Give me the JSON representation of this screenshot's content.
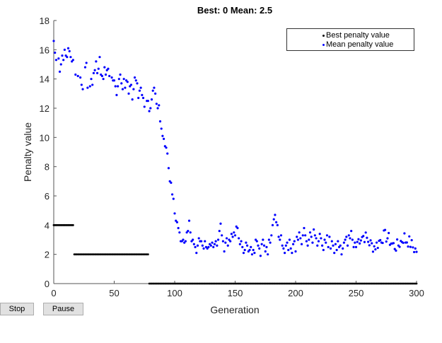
{
  "chart_data": {
    "type": "scatter",
    "title": "Best: 0 Mean: 2.5",
    "xlabel": "Generation",
    "ylabel": "Penalty value",
    "xlim": [
      0,
      300
    ],
    "ylim": [
      0,
      18
    ],
    "xticks": [
      0,
      50,
      100,
      150,
      200,
      250,
      300
    ],
    "yticks": [
      0,
      2,
      4,
      6,
      8,
      10,
      12,
      14,
      16,
      18
    ],
    "grid": false,
    "legend_position": "top-right",
    "series": [
      {
        "name": "Best penalty value",
        "color": "#000000",
        "segments": [
          {
            "from": 0,
            "to": 16,
            "value": 4
          },
          {
            "from": 17,
            "to": 78,
            "value": 2
          },
          {
            "from": 79,
            "to": 300,
            "value": 0
          }
        ]
      },
      {
        "name": "Mean penalty value",
        "color": "#0000ff",
        "keypoints": [
          [
            0,
            16.6
          ],
          [
            1,
            15.8
          ],
          [
            2,
            15.3
          ],
          [
            4,
            15.4
          ],
          [
            5,
            14.5
          ],
          [
            6,
            15.0
          ],
          [
            7,
            15.6
          ],
          [
            8,
            15.3
          ],
          [
            9,
            16.0
          ],
          [
            10,
            15.6
          ],
          [
            11,
            15.5
          ],
          [
            12,
            16.1
          ],
          [
            13,
            15.9
          ],
          [
            14,
            15.5
          ],
          [
            15,
            15.2
          ],
          [
            16,
            15.3
          ],
          [
            18,
            14.3
          ],
          [
            20,
            14.2
          ],
          [
            22,
            14.1
          ],
          [
            23,
            13.6
          ],
          [
            24,
            13.3
          ],
          [
            26,
            14.8
          ],
          [
            27,
            15.1
          ],
          [
            28,
            13.4
          ],
          [
            30,
            13.5
          ],
          [
            31,
            14.0
          ],
          [
            32,
            13.6
          ],
          [
            33,
            14.4
          ],
          [
            34,
            14.6
          ],
          [
            35,
            15.2
          ],
          [
            36,
            14.4
          ],
          [
            37,
            14.7
          ],
          [
            38,
            15.5
          ],
          [
            39,
            14.3
          ],
          [
            40,
            14.2
          ],
          [
            41,
            14.0
          ],
          [
            42,
            14.8
          ],
          [
            43,
            14.3
          ],
          [
            44,
            14.6
          ],
          [
            45,
            14.7
          ],
          [
            46,
            14.2
          ],
          [
            48,
            14.1
          ],
          [
            49,
            13.9
          ],
          [
            50,
            13.9
          ],
          [
            51,
            13.5
          ],
          [
            52,
            12.9
          ],
          [
            53,
            13.5
          ],
          [
            54,
            14.0
          ],
          [
            55,
            14.3
          ],
          [
            56,
            13.7
          ],
          [
            57,
            13.3
          ],
          [
            58,
            14.0
          ],
          [
            59,
            13.4
          ],
          [
            60,
            13.9
          ],
          [
            61,
            13.8
          ],
          [
            62,
            13.0
          ],
          [
            63,
            13.5
          ],
          [
            64,
            13.6
          ],
          [
            65,
            12.6
          ],
          [
            66,
            13.3
          ],
          [
            67,
            14.1
          ],
          [
            68,
            13.9
          ],
          [
            69,
            13.7
          ],
          [
            70,
            12.7
          ],
          [
            71,
            13.2
          ],
          [
            72,
            13.4
          ],
          [
            73,
            12.9
          ],
          [
            74,
            12.7
          ],
          [
            75,
            12.1
          ],
          [
            77,
            12.5
          ],
          [
            78,
            12.5
          ],
          [
            79,
            11.8
          ],
          [
            80,
            12.0
          ],
          [
            81,
            12.6
          ],
          [
            82,
            13.2
          ],
          [
            83,
            13.4
          ],
          [
            84,
            13.0
          ],
          [
            85,
            12.3
          ],
          [
            86,
            12.0
          ],
          [
            87,
            12.2
          ],
          [
            88,
            11.1
          ],
          [
            89,
            10.6
          ],
          [
            90,
            10.1
          ],
          [
            91,
            9.9
          ],
          [
            92,
            9.4
          ],
          [
            93,
            9.3
          ],
          [
            94,
            8.9
          ],
          [
            95,
            7.9
          ],
          [
            96,
            7.0
          ],
          [
            97,
            6.9
          ],
          [
            98,
            6.1
          ],
          [
            99,
            5.8
          ],
          [
            100,
            4.8
          ],
          [
            101,
            4.3
          ],
          [
            102,
            4.2
          ],
          [
            103,
            3.8
          ],
          [
            104,
            3.5
          ],
          [
            105,
            2.9
          ],
          [
            106,
            2.9
          ],
          [
            107,
            3.0
          ],
          [
            108,
            2.8
          ],
          [
            109,
            2.9
          ],
          [
            110,
            3.5
          ],
          [
            111,
            3.6
          ],
          [
            112,
            4.3
          ],
          [
            113,
            3.5
          ],
          [
            114,
            2.9
          ],
          [
            115,
            3.0
          ],
          [
            116,
            2.7
          ],
          [
            117,
            2.5
          ],
          [
            118,
            2.1
          ],
          [
            119,
            2.6
          ],
          [
            120,
            3.1
          ],
          [
            121,
            2.9
          ],
          [
            122,
            2.9
          ],
          [
            123,
            2.6
          ],
          [
            124,
            2.4
          ],
          [
            125,
            2.9
          ],
          [
            126,
            2.5
          ],
          [
            127,
            2.4
          ],
          [
            128,
            2.5
          ],
          [
            129,
            2.7
          ],
          [
            130,
            2.6
          ],
          [
            131,
            2.8
          ],
          [
            132,
            2.5
          ],
          [
            133,
            2.7
          ],
          [
            134,
            2.9
          ],
          [
            135,
            2.6
          ],
          [
            136,
            3.0
          ],
          [
            137,
            3.6
          ],
          [
            138,
            4.1
          ],
          [
            139,
            3.3
          ],
          [
            140,
            2.9
          ],
          [
            141,
            2.2
          ],
          [
            142,
            2.8
          ],
          [
            143,
            3.1
          ],
          [
            144,
            2.6
          ],
          [
            145,
            3.0
          ],
          [
            146,
            2.9
          ],
          [
            147,
            3.4
          ],
          [
            148,
            3.2
          ],
          [
            149,
            3.5
          ],
          [
            150,
            3.3
          ],
          [
            151,
            3.9
          ],
          [
            152,
            3.8
          ],
          [
            153,
            3.1
          ],
          [
            154,
            2.7
          ],
          [
            155,
            2.9
          ],
          [
            156,
            2.5
          ],
          [
            157,
            2.1
          ],
          [
            158,
            2.3
          ],
          [
            159,
            2.8
          ],
          [
            160,
            2.6
          ],
          [
            161,
            2.2
          ],
          [
            162,
            2.3
          ],
          [
            163,
            2.5
          ],
          [
            164,
            2.0
          ],
          [
            165,
            2.3
          ],
          [
            166,
            2.1
          ],
          [
            167,
            3.0
          ],
          [
            168,
            2.9
          ],
          [
            169,
            2.6
          ],
          [
            170,
            2.4
          ],
          [
            171,
            1.9
          ],
          [
            172,
            2.7
          ],
          [
            173,
            3.0
          ],
          [
            174,
            2.6
          ],
          [
            175,
            2.2
          ],
          [
            176,
            2.5
          ],
          [
            177,
            2.0
          ],
          [
            178,
            3.0
          ],
          [
            179,
            2.8
          ],
          [
            180,
            3.3
          ],
          [
            181,
            4.0
          ],
          [
            182,
            4.4
          ],
          [
            183,
            4.7
          ],
          [
            184,
            4.2
          ],
          [
            185,
            4.0
          ],
          [
            186,
            3.2
          ],
          [
            187,
            3.0
          ],
          [
            188,
            3.3
          ],
          [
            189,
            2.6
          ],
          [
            190,
            2.4
          ],
          [
            191,
            2.1
          ],
          [
            192,
            2.6
          ],
          [
            193,
            2.8
          ],
          [
            194,
            2.3
          ],
          [
            195,
            3.0
          ],
          [
            196,
            2.4
          ],
          [
            197,
            2.1
          ],
          [
            198,
            2.7
          ],
          [
            199,
            2.9
          ],
          [
            200,
            2.2
          ],
          [
            201,
            3.2
          ],
          [
            202,
            3.0
          ],
          [
            203,
            3.5
          ],
          [
            204,
            3.1
          ],
          [
            205,
            2.7
          ],
          [
            206,
            3.3
          ],
          [
            207,
            3.8
          ],
          [
            208,
            3.3
          ],
          [
            209,
            2.9
          ],
          [
            210,
            2.6
          ],
          [
            211,
            3.0
          ],
          [
            212,
            3.5
          ],
          [
            213,
            3.2
          ],
          [
            214,
            2.8
          ],
          [
            215,
            3.7
          ],
          [
            216,
            3.3
          ],
          [
            217,
            3.1
          ],
          [
            218,
            2.6
          ],
          [
            219,
            2.9
          ],
          [
            220,
            3.4
          ],
          [
            221,
            3.1
          ],
          [
            222,
            2.6
          ],
          [
            223,
            2.3
          ],
          [
            224,
            3.0
          ],
          [
            225,
            2.8
          ],
          [
            226,
            3.3
          ],
          [
            227,
            2.5
          ],
          [
            228,
            3.2
          ],
          [
            229,
            2.4
          ],
          [
            230,
            2.9
          ],
          [
            231,
            2.6
          ],
          [
            232,
            2.1
          ],
          [
            233,
            2.7
          ],
          [
            234,
            2.3
          ],
          [
            235,
            2.9
          ],
          [
            236,
            2.5
          ],
          [
            237,
            2.6
          ],
          [
            238,
            2.0
          ],
          [
            239,
            2.4
          ],
          [
            240,
            2.8
          ],
          [
            241,
            3.0
          ],
          [
            242,
            3.2
          ],
          [
            243,
            2.6
          ],
          [
            244,
            3.3
          ],
          [
            245,
            3.1
          ],
          [
            246,
            3.6
          ],
          [
            247,
            3.0
          ],
          [
            248,
            2.5
          ],
          [
            249,
            2.8
          ],
          [
            250,
            2.5
          ]
        ]
      }
    ]
  },
  "buttons": {
    "stop_label": "Stop",
    "pause_label": "Pause"
  },
  "legend": {
    "best_label": "Best penalty value",
    "mean_label": "Mean penalty value"
  }
}
